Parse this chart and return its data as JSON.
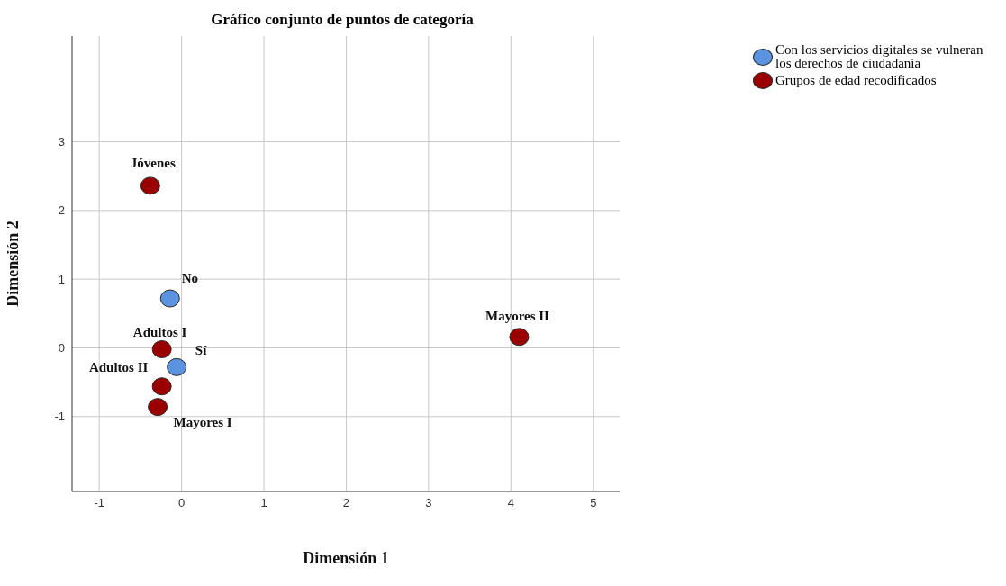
{
  "chart_data": {
    "type": "scatter",
    "title": "Gráfico conjunto de puntos de categoría",
    "xlabel": "Dimensión 1",
    "ylabel": "Dimensión 2",
    "xlim": [
      -1.33,
      5.32
    ],
    "ylim": [
      -2.09,
      4.54
    ],
    "xticks": [
      -1,
      0,
      1,
      2,
      3,
      4,
      5
    ],
    "yticks": [
      -1,
      0,
      1,
      2,
      3
    ],
    "grid": true,
    "legend": "top right",
    "marker": "circle",
    "series": [
      {
        "name": "Con los servicios digitales se vulneran los derechos de ciudadanía",
        "color": "#5b93e0",
        "x": [
          -0.14,
          -0.06
        ],
        "values": [
          0.72,
          -0.28
        ]
      },
      {
        "name": "Grupos de edad recodificados",
        "color": "#9b0000",
        "x": [
          -0.38,
          -0.24,
          -0.24,
          -0.29,
          4.1
        ],
        "values": [
          2.36,
          -0.02,
          -0.56,
          -0.86,
          0.16
        ]
      }
    ],
    "annotations": [
      {
        "text": "No",
        "x": -0.14,
        "y": 0.72
      },
      {
        "text": "Sí",
        "x": -0.06,
        "y": -0.28
      },
      {
        "text": "Jóvenes",
        "x": -0.38,
        "y": 2.36
      },
      {
        "text": "Adultos I",
        "x": -0.24,
        "y": -0.02
      },
      {
        "text": "Adultos II",
        "x": -0.24,
        "y": -0.56
      },
      {
        "text": "Mayores I",
        "x": -0.29,
        "y": -0.86
      },
      {
        "text": "Mayores II",
        "x": 4.1,
        "y": 0.16
      }
    ]
  }
}
